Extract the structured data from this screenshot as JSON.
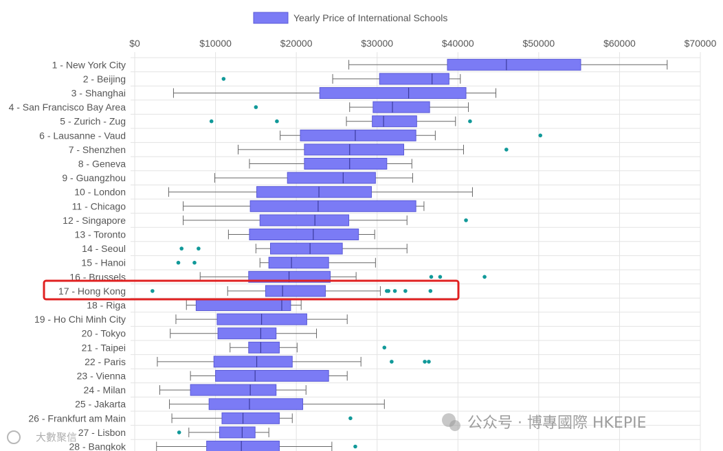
{
  "watermarks": {
    "right": "公众号 · 博專國際 HKEPIE",
    "left": "大數聚信"
  },
  "colors": {
    "box_fill": "#7b7bf5",
    "box_stroke": "#5a5ad6",
    "whisker": "#666666",
    "outlier": "#119999",
    "grid": "#e3e3e3",
    "highlight": "#e02020"
  },
  "highlight_category": "17 - Hong Kong",
  "chart_data": {
    "type": "boxplot",
    "orientation": "horizontal",
    "legend": {
      "label": "Yearly Price of International Schools",
      "position": "top"
    },
    "x_axis": {
      "ticks": [
        "$0",
        "$10000",
        "$20000",
        "$30000",
        "$40000",
        "$50000",
        "$60000",
        "$70000"
      ],
      "range": [
        0,
        70000
      ],
      "position": "top",
      "grid": true
    },
    "categories": [
      "1 - New York City",
      "2 - Beijing",
      "3 - Shanghai",
      "4 - San Francisco Bay Area",
      "5 - Zurich - Zug",
      "6 - Lausanne - Vaud",
      "7 - Shenzhen",
      "8 - Geneva",
      "9 - Guangzhou",
      "10 - London",
      "11 - Chicago",
      "12 - Singapore",
      "13 - Toronto",
      "14 - Seoul",
      "15 - Hanoi",
      "16 - Brussels",
      "17 - Hong Kong",
      "18 - Riga",
      "19 - Ho Chi Minh City",
      "20 - Tokyo",
      "21 - Taipei",
      "22 - Paris",
      "23 - Vienna",
      "24 - Milan",
      "25 - Jakarta",
      "26 - Frankfurt am Main",
      "27 - Lisbon",
      "28 - Bangkok"
    ],
    "series": [
      {
        "name": "Yearly Price of International Schools",
        "boxes": [
          {
            "min": 26500,
            "q1": 38700,
            "median": 46000,
            "q3": 55200,
            "max": 65900,
            "outliers": []
          },
          {
            "min": 24500,
            "q1": 30300,
            "median": 36800,
            "q3": 38900,
            "max": 40300,
            "outliers": [
              11000
            ]
          },
          {
            "min": 4800,
            "q1": 22900,
            "median": 33900,
            "q3": 41000,
            "max": 44700,
            "outliers": []
          },
          {
            "min": 26600,
            "q1": 29500,
            "median": 31900,
            "q3": 36500,
            "max": 41300,
            "outliers": [
              15000
            ]
          },
          {
            "min": 26200,
            "q1": 29400,
            "median": 30800,
            "q3": 34900,
            "max": 39700,
            "outliers": [
              9500,
              17600,
              41500
            ]
          },
          {
            "min": 18000,
            "q1": 20500,
            "median": 27300,
            "q3": 34800,
            "max": 37200,
            "outliers": [
              50200
            ]
          },
          {
            "min": 12800,
            "q1": 21000,
            "median": 26600,
            "q3": 33300,
            "max": 40700,
            "outliers": [
              46000
            ]
          },
          {
            "min": 14200,
            "q1": 21000,
            "median": 26600,
            "q3": 31200,
            "max": 34300,
            "outliers": []
          },
          {
            "min": 9900,
            "q1": 18900,
            "median": 25800,
            "q3": 29800,
            "max": 34400,
            "outliers": []
          },
          {
            "min": 4200,
            "q1": 15100,
            "median": 22800,
            "q3": 29300,
            "max": 41800,
            "outliers": []
          },
          {
            "min": 6000,
            "q1": 14300,
            "median": 22700,
            "q3": 34800,
            "max": 35800,
            "outliers": []
          },
          {
            "min": 6000,
            "q1": 15500,
            "median": 22300,
            "q3": 26500,
            "max": 33700,
            "outliers": [
              41000
            ]
          },
          {
            "min": 11600,
            "q1": 14200,
            "median": 22100,
            "q3": 27700,
            "max": 29700,
            "outliers": []
          },
          {
            "min": 15000,
            "q1": 16800,
            "median": 21700,
            "q3": 25700,
            "max": 33700,
            "outliers": [
              5800,
              7900
            ]
          },
          {
            "min": 15500,
            "q1": 16600,
            "median": 19400,
            "q3": 24000,
            "max": 29800,
            "outliers": [
              5400,
              7400
            ]
          },
          {
            "min": 8100,
            "q1": 14100,
            "median": 19100,
            "q3": 24200,
            "max": 27400,
            "outliers": [
              36700,
              37800,
              43300
            ]
          },
          {
            "min": 11500,
            "q1": 16200,
            "median": 18300,
            "q3": 23600,
            "max": 30400,
            "outliers": [
              2200,
              31200,
              31400,
              32200,
              33500,
              36600
            ]
          },
          {
            "min": 6400,
            "q1": 7600,
            "median": 18200,
            "q3": 19300,
            "max": 20600,
            "outliers": []
          },
          {
            "min": 5100,
            "q1": 10200,
            "median": 15700,
            "q3": 21300,
            "max": 26300,
            "outliers": []
          },
          {
            "min": 4400,
            "q1": 10300,
            "median": 15600,
            "q3": 17500,
            "max": 22500,
            "outliers": []
          },
          {
            "min": 11800,
            "q1": 14100,
            "median": 15600,
            "q3": 17900,
            "max": 20100,
            "outliers": [
              30900
            ]
          },
          {
            "min": 2800,
            "q1": 9800,
            "median": 15100,
            "q3": 19500,
            "max": 28000,
            "outliers": [
              31800,
              35900,
              36400
            ]
          },
          {
            "min": 6900,
            "q1": 10000,
            "median": 14900,
            "q3": 24000,
            "max": 26300,
            "outliers": []
          },
          {
            "min": 3100,
            "q1": 6900,
            "median": 14300,
            "q3": 17500,
            "max": 21200,
            "outliers": []
          },
          {
            "min": 4300,
            "q1": 9200,
            "median": 14200,
            "q3": 20800,
            "max": 30900,
            "outliers": []
          },
          {
            "min": 4600,
            "q1": 10800,
            "median": 13400,
            "q3": 17900,
            "max": 19500,
            "outliers": [
              26700
            ]
          },
          {
            "min": 6700,
            "q1": 10500,
            "median": 13300,
            "q3": 14900,
            "max": 16600,
            "outliers": [
              5500
            ]
          },
          {
            "min": 2700,
            "q1": 8900,
            "median": 13200,
            "q3": 17900,
            "max": 24400,
            "outliers": [
              27300
            ]
          }
        ]
      }
    ]
  }
}
